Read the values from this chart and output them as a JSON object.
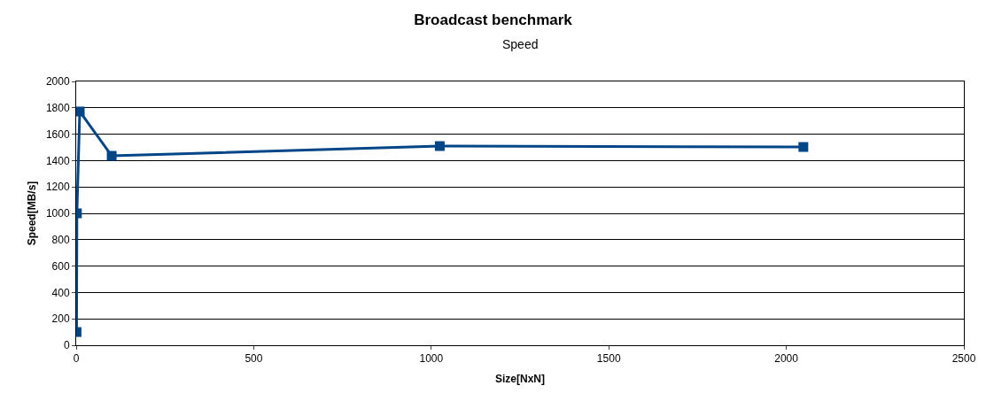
{
  "chart_data": {
    "type": "line",
    "title": "Broadcast benchmark",
    "subtitle": "Speed",
    "xlabel": "Size[NxN]",
    "ylabel": "Speed[MB/s]",
    "x": [
      1,
      2,
      10,
      100,
      1024,
      2048
    ],
    "series": [
      {
        "color": "#004586",
        "values": [
          100,
          1000,
          1772,
          1436,
          1510,
          1503
        ]
      }
    ],
    "xlim": [
      0,
      2500
    ],
    "xticks": [
      0,
      500,
      1000,
      1500,
      2000,
      2500
    ],
    "ylim": [
      0,
      2000
    ],
    "yticks": [
      0,
      200,
      400,
      600,
      800,
      1000,
      1200,
      1400,
      1600,
      1800,
      2000
    ],
    "grid": "y",
    "legend": false,
    "marker": "square",
    "line_style": "solid"
  }
}
